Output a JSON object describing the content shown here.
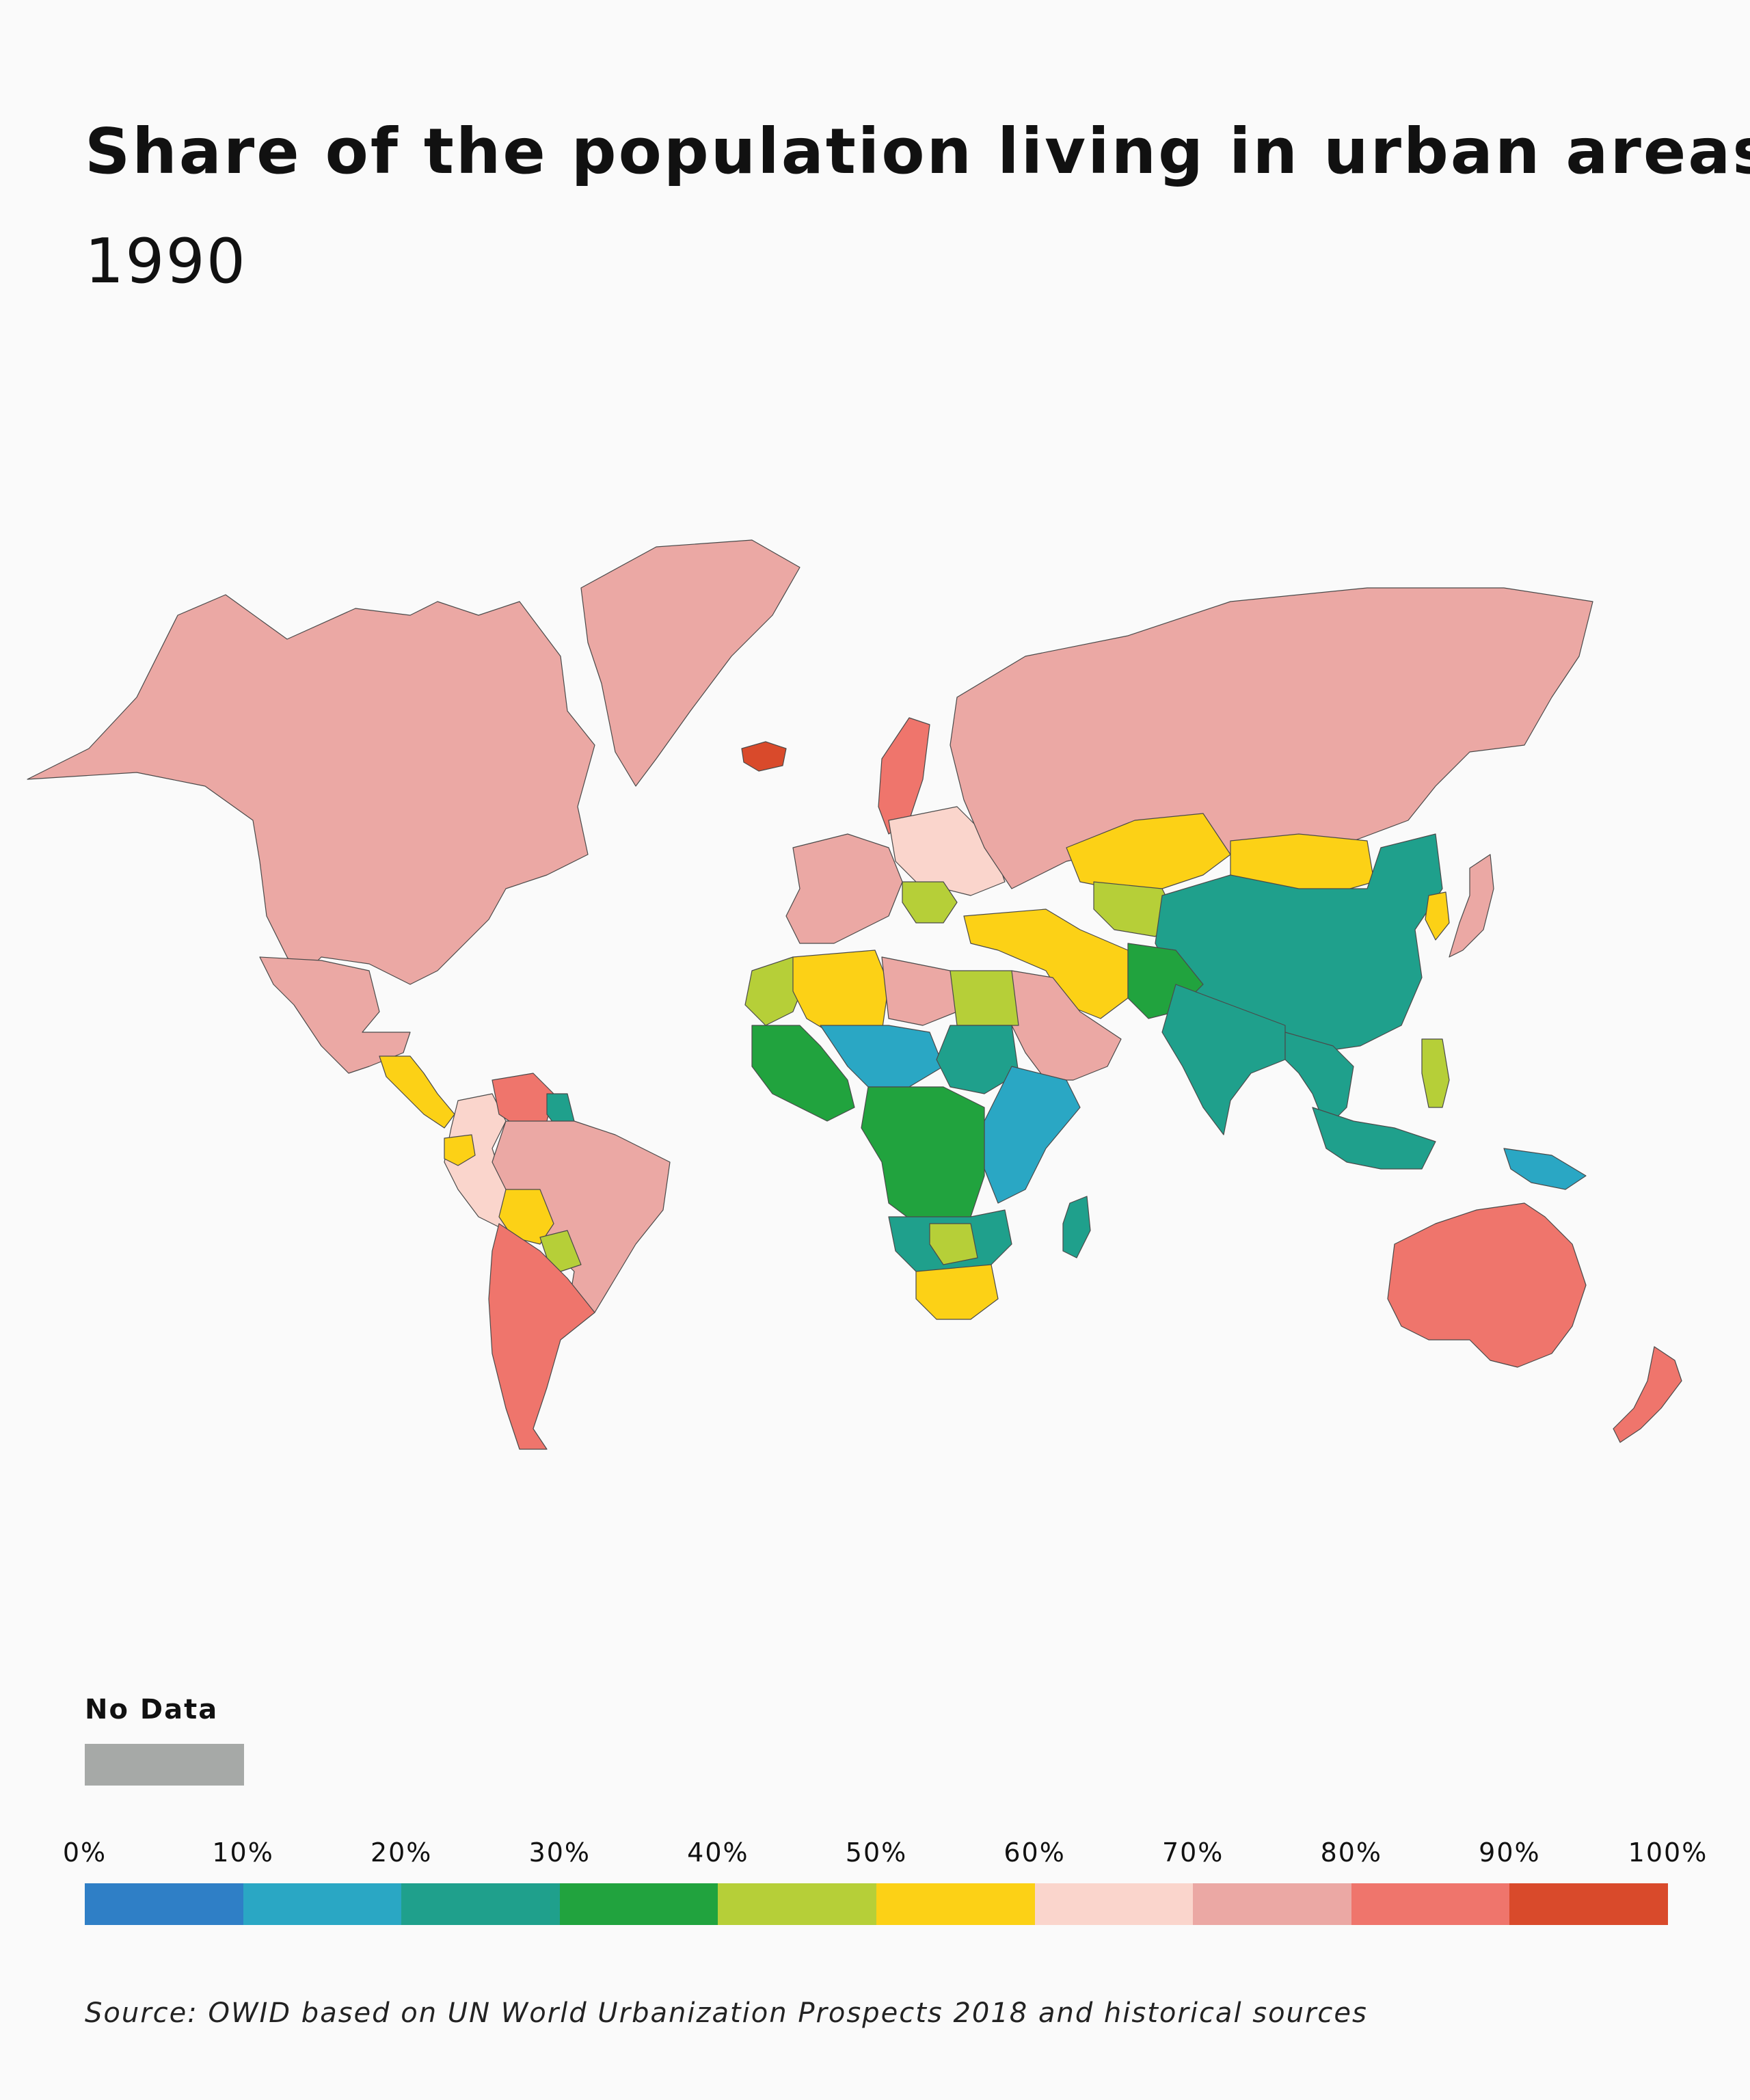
{
  "title": "Share of the population living in urban areas",
  "subtitle": "1990",
  "legend": {
    "no_data_label": "No Data",
    "no_data_color": "#a6a9a7",
    "ticks": [
      "0%",
      "10%",
      "20%",
      "30%",
      "40%",
      "50%",
      "60%",
      "70%",
      "80%",
      "90%",
      "100%"
    ],
    "bins": [
      {
        "range": "0-10%",
        "color": "#2f7fc6"
      },
      {
        "range": "10-20%",
        "color": "#2aa7c4"
      },
      {
        "range": "20-30%",
        "color": "#1fa08c"
      },
      {
        "range": "30-40%",
        "color": "#21a33e"
      },
      {
        "range": "40-50%",
        "color": "#b6cf38"
      },
      {
        "range": "50-60%",
        "color": "#fcd116"
      },
      {
        "range": "60-70%",
        "color": "#fad5cc"
      },
      {
        "range": "70-80%",
        "color": "#eba8a4"
      },
      {
        "range": "80-90%",
        "color": "#ef756c"
      },
      {
        "range": "90-100%",
        "color": "#d94a2b"
      }
    ]
  },
  "source": "Source: OWID based on UN World Urbanization Prospects 2018 and historical sources",
  "regions": [
    {
      "id": "north-america",
      "bin": 7
    },
    {
      "id": "mexico",
      "bin": 7
    },
    {
      "id": "greenland",
      "bin": 7
    },
    {
      "id": "central-america",
      "bin": 5
    },
    {
      "id": "colombia-peru",
      "bin": 6
    },
    {
      "id": "brazil",
      "bin": 7
    },
    {
      "id": "venezuela",
      "bin": 8
    },
    {
      "id": "guyana",
      "bin": 2
    },
    {
      "id": "ecuador",
      "bin": 5
    },
    {
      "id": "bolivia",
      "bin": 5
    },
    {
      "id": "paraguay",
      "bin": 4
    },
    {
      "id": "chile-argentina",
      "bin": 8
    },
    {
      "id": "scandinavia",
      "bin": 8
    },
    {
      "id": "iceland",
      "bin": 9
    },
    {
      "id": "western-europe",
      "bin": 7
    },
    {
      "id": "eastern-europe",
      "bin": 6
    },
    {
      "id": "balkans",
      "bin": 4
    },
    {
      "id": "russia",
      "bin": 7
    },
    {
      "id": "kazakhstan",
      "bin": 5
    },
    {
      "id": "central-asia",
      "bin": 4
    },
    {
      "id": "mongolia",
      "bin": 5
    },
    {
      "id": "china",
      "bin": 2
    },
    {
      "id": "turkey-iran",
      "bin": 5
    },
    {
      "id": "arabia",
      "bin": 7
    },
    {
      "id": "pakistan",
      "bin": 3
    },
    {
      "id": "india",
      "bin": 2
    },
    {
      "id": "southeast-asia",
      "bin": 2
    },
    {
      "id": "japan",
      "bin": 7
    },
    {
      "id": "korea",
      "bin": 5
    },
    {
      "id": "philippines",
      "bin": 4
    },
    {
      "id": "indonesia",
      "bin": 2
    },
    {
      "id": "png",
      "bin": 1
    },
    {
      "id": "australia",
      "bin": 8
    },
    {
      "id": "new-zealand",
      "bin": 8
    },
    {
      "id": "morocco",
      "bin": 4
    },
    {
      "id": "algeria",
      "bin": 5
    },
    {
      "id": "libya",
      "bin": 7
    },
    {
      "id": "egypt",
      "bin": 4
    },
    {
      "id": "west-africa",
      "bin": 3
    },
    {
      "id": "sahel",
      "bin": 1
    },
    {
      "id": "sudan",
      "bin": 2
    },
    {
      "id": "east-africa",
      "bin": 1
    },
    {
      "id": "central-africa",
      "bin": 3
    },
    {
      "id": "southern-africa",
      "bin": 2
    },
    {
      "id": "botswana",
      "bin": 4
    },
    {
      "id": "south-africa",
      "bin": 5
    },
    {
      "id": "madagascar",
      "bin": 2
    }
  ]
}
